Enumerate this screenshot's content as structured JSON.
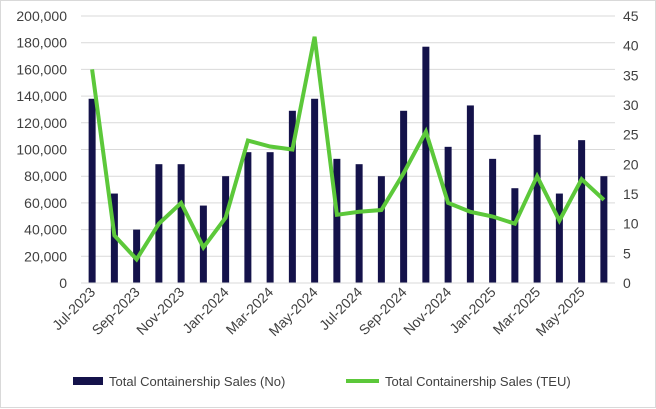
{
  "chart_data": {
    "type": "bar",
    "categories": [
      "Jul-2023",
      "Aug-2023",
      "Sep-2023",
      "Oct-2023",
      "Nov-2023",
      "Dec-2023",
      "Jan-2024",
      "Feb-2024",
      "Mar-2024",
      "Apr-2024",
      "May-2024",
      "Jun-2024",
      "Jul-2024",
      "Aug-2024",
      "Sep-2024",
      "Oct-2024",
      "Nov-2024",
      "Dec-2024",
      "Jan-2025",
      "Feb-2025",
      "Mar-2025",
      "Apr-2025",
      "May-2025",
      "Jun-2025"
    ],
    "x_tick_labels": [
      "Jul-2023",
      "Sep-2023",
      "Nov-2023",
      "Jan-2024",
      "Mar-2024",
      "May-2024",
      "Jul-2024",
      "Sep-2024",
      "Nov-2024",
      "Jan-2025",
      "Mar-2025",
      "May-2025"
    ],
    "series": [
      {
        "name": "Total Containership Sales (No)",
        "type": "bar",
        "axis": "left",
        "color": "#14124a",
        "values": [
          138000,
          67000,
          40000,
          89000,
          89000,
          58000,
          80000,
          98000,
          98000,
          129000,
          138000,
          93000,
          89000,
          80000,
          129000,
          177000,
          102000,
          133000,
          93000,
          71000,
          111000,
          67000,
          107000,
          80000
        ]
      },
      {
        "name": "Total Containership Sales (TEU)",
        "type": "line",
        "axis": "right",
        "color": "#5cc83a",
        "values": [
          36,
          8,
          4,
          10,
          13.5,
          6,
          11,
          24,
          23,
          22.5,
          41.5,
          11.5,
          12,
          12.3,
          18.5,
          25.5,
          13.5,
          12,
          11.2,
          10,
          18,
          10.5,
          17.5,
          14
        ]
      }
    ],
    "y_left": {
      "min": 0,
      "max": 200000,
      "step": 20000,
      "tick_labels": [
        "0",
        "20,000",
        "40,000",
        "60,000",
        "80,000",
        "100,000",
        "120,000",
        "140,000",
        "160,000",
        "180,000",
        "200,000"
      ]
    },
    "y_right": {
      "min": 0,
      "max": 45,
      "step": 5,
      "tick_labels": [
        "0",
        "5",
        "10",
        "15",
        "20",
        "25",
        "30",
        "35",
        "40",
        "45"
      ]
    },
    "grid": true,
    "legend": "bottom"
  }
}
